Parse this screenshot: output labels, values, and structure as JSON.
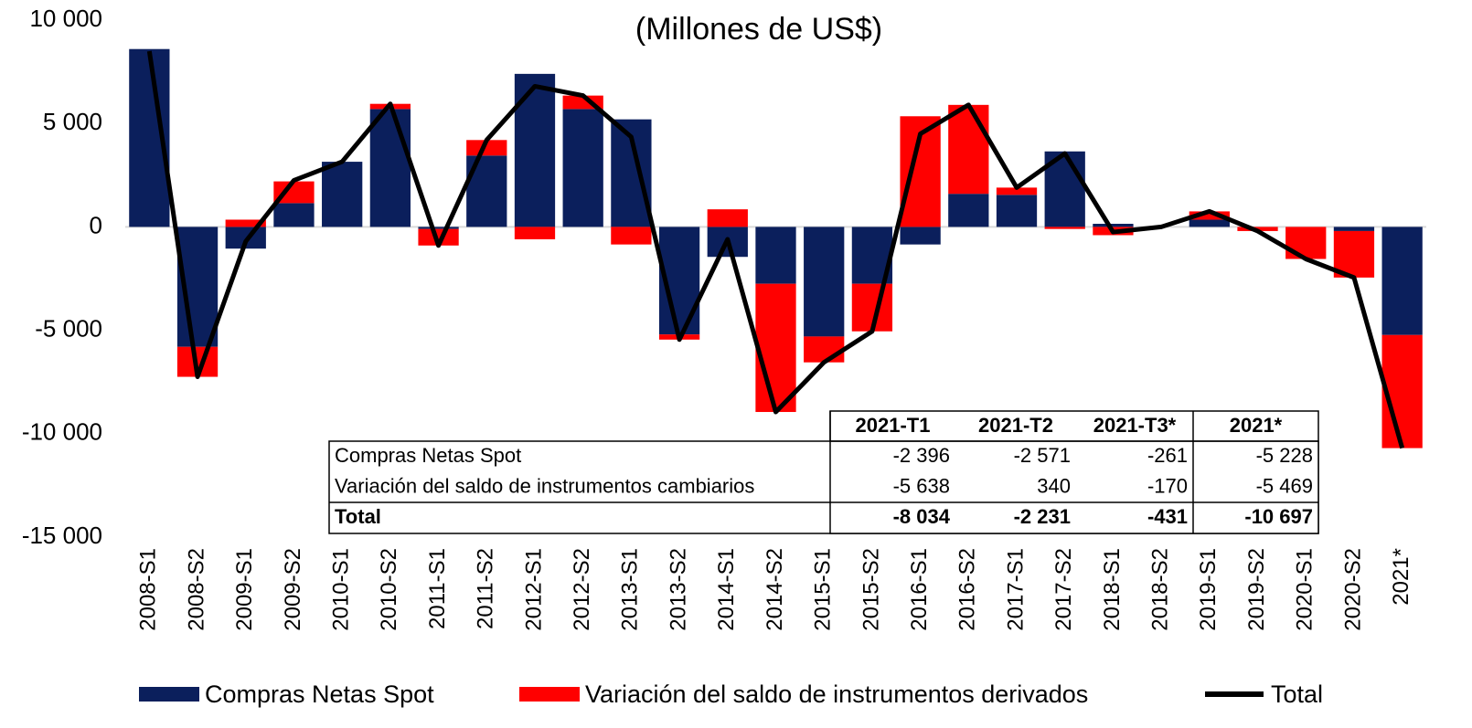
{
  "chart_data": {
    "type": "stacked-bar-line",
    "subtitle": "(Millones de US$)",
    "categories": [
      "2008-S1",
      "2008-S2",
      "2009-S1",
      "2009-S2",
      "2010-S1",
      "2010-S2",
      "2011-S1",
      "2011-S2",
      "2012-S1",
      "2012-S2",
      "2013-S1",
      "2013-S2",
      "2014-S1",
      "2014-S2",
      "2015-S1",
      "2015-S2",
      "2016-S1",
      "2016-S2",
      "2017-S1",
      "2017-S2",
      "2018-S1",
      "2018-S2",
      "2019-S1",
      "2019-S2",
      "2020-S1",
      "2020-S2",
      "2021*"
    ],
    "series": [
      {
        "name": "Compras Netas Spot",
        "color": "#0b1f5c",
        "kind": "bar",
        "values": [
          8600,
          -5800,
          -1050,
          1150,
          3150,
          5700,
          -100,
          3450,
          7400,
          5700,
          5200,
          -5200,
          -1450,
          -2750,
          -5300,
          -2750,
          -850,
          1600,
          1550,
          3650,
          150,
          0,
          350,
          0,
          0,
          -200,
          -5228
        ]
      },
      {
        "name": "Variación del saldo de instrumentos derivados",
        "color": "#ff0000",
        "kind": "bar",
        "values": [
          0,
          -1450,
          350,
          1050,
          0,
          250,
          -800,
          750,
          -600,
          650,
          -850,
          -250,
          850,
          -6200,
          -1250,
          -2300,
          5350,
          4300,
          350,
          -100,
          -400,
          0,
          400,
          -200,
          -1550,
          -2250,
          -5469
        ]
      },
      {
        "name": "Total",
        "color": "#000000",
        "kind": "line",
        "values": [
          8500,
          -7250,
          -700,
          2250,
          3150,
          5950,
          -900,
          4200,
          6800,
          6350,
          4350,
          -5450,
          -600,
          -8950,
          -6550,
          -5050,
          4500,
          5900,
          1900,
          3550,
          -250,
          0,
          750,
          -200,
          -1550,
          -2450,
          -10697
        ]
      }
    ],
    "ylim": [
      -15000,
      10000
    ],
    "yticks": [
      {
        "value": -15000,
        "label": "-15 000"
      },
      {
        "value": -10000,
        "label": "-10 000"
      },
      {
        "value": -5000,
        "label": "-5 000"
      },
      0,
      {
        "value": 5000,
        "label": "5 000"
      },
      {
        "value": 10000,
        "label": "10 000"
      }
    ]
  },
  "table": {
    "header": [
      "2021-T1",
      "2021-T2",
      "2021-T3*",
      "2021*"
    ],
    "rows": [
      [
        "Compras Netas Spot",
        "-2 396",
        "-2 571",
        "-261",
        "-5 228"
      ],
      [
        "Variación del saldo de instrumentos cambiarios",
        "-5 638",
        "340",
        "-170",
        "-5 469"
      ],
      [
        "Total",
        "-8 034",
        "-2 231",
        "-431",
        "-10 697"
      ]
    ]
  }
}
